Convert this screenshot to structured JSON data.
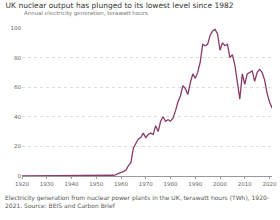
{
  "chart_data": {
    "type": "line",
    "title": "UK nuclear output has plunged to its lowest level since 1982",
    "subtitle": "Annual electricity generation, terawatt hours",
    "caption": "Electricity generation from nuclear power plants in the UK, terawatt hours (TWh), 1920-2021. Source: BEIS and Carbon Brief",
    "x": [
      1920,
      1930,
      1940,
      1950,
      1955,
      1956,
      1957,
      1958,
      1959,
      1960,
      1961,
      1962,
      1963,
      1964,
      1965,
      1966,
      1967,
      1968,
      1969,
      1970,
      1971,
      1972,
      1973,
      1974,
      1975,
      1976,
      1977,
      1978,
      1979,
      1980,
      1981,
      1982,
      1983,
      1984,
      1985,
      1986,
      1987,
      1988,
      1989,
      1990,
      1991,
      1992,
      1993,
      1994,
      1995,
      1996,
      1997,
      1998,
      1999,
      2000,
      2001,
      2002,
      2003,
      2004,
      2005,
      2006,
      2007,
      2008,
      2009,
      2010,
      2011,
      2012,
      2013,
      2014,
      2015,
      2016,
      2017,
      2018,
      2019,
      2020,
      2021
    ],
    "series": [
      {
        "name": "Nuclear",
        "color": "#883a69",
        "values": [
          0,
          0,
          0,
          0,
          0,
          0.1,
          0.5,
          1,
          2,
          2.5,
          3,
          4,
          7,
          9,
          19,
          22,
          25,
          26,
          29,
          26,
          28,
          29,
          28,
          34,
          30,
          37,
          40,
          37,
          38,
          37,
          39,
          44,
          50,
          54,
          61,
          59,
          55,
          63,
          69,
          66,
          70,
          77,
          89,
          88,
          89,
          95,
          98,
          99,
          96,
          85,
          90,
          88,
          89,
          80,
          82,
          75,
          63,
          52,
          69,
          62,
          69,
          70,
          71,
          64,
          70,
          72,
          70,
          65,
          56,
          50,
          46
        ]
      }
    ],
    "xlim": [
      1920,
      2021
    ],
    "xticks": [
      1920,
      1930,
      1940,
      1950,
      1960,
      1970,
      1980,
      1990,
      2000,
      2010,
      2020
    ],
    "ylim": [
      0,
      100
    ],
    "yticks": [
      0,
      20,
      40,
      60,
      80,
      100
    ],
    "grid": true
  }
}
